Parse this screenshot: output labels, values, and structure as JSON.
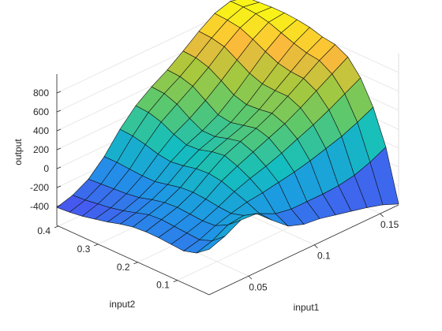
{
  "chart_data": {
    "type": "surface3d",
    "title": "",
    "xlabel": "input1",
    "ylabel": "input2",
    "zlabel": "output",
    "x_ticks": [
      "0.05",
      "0.1",
      "0.15"
    ],
    "y_ticks": [
      "0.1",
      "0.2",
      "0.3",
      "0.4"
    ],
    "z_ticks": [
      "-400",
      "-200",
      "0",
      "200",
      "400",
      "600",
      "800"
    ],
    "grid": true,
    "colormap": "parula",
    "x_grid": [
      0.02,
      0.032,
      0.044,
      0.056,
      0.068,
      0.08,
      0.092,
      0.104,
      0.116,
      0.128,
      0.14,
      0.152,
      0.164
    ],
    "y_grid": [
      0.02,
      0.052,
      0.084,
      0.116,
      0.148,
      0.18,
      0.212,
      0.244,
      0.276,
      0.308,
      0.34,
      0.372,
      0.404
    ],
    "z": [
      [
        -120,
        -60,
        30,
        20,
        -130,
        -270,
        -330,
        -350,
        -390,
        -430,
        -470,
        -520,
        -590
      ],
      [
        -220,
        -170,
        -80,
        -60,
        -120,
        -200,
        -230,
        -230,
        -230,
        -220,
        -190,
        -130,
        -50
      ],
      [
        -260,
        -220,
        -150,
        -100,
        -60,
        -40,
        -10,
        20,
        60,
        110,
        160,
        230,
        310
      ],
      [
        -250,
        -210,
        -160,
        -90,
        -10,
        50,
        100,
        160,
        230,
        300,
        380,
        470,
        560
      ],
      [
        -240,
        -200,
        -150,
        -70,
        40,
        120,
        190,
        260,
        330,
        420,
        520,
        620,
        720
      ],
      [
        -240,
        -190,
        -140,
        -60,
        60,
        170,
        240,
        300,
        380,
        480,
        590,
        700,
        790
      ],
      [
        -250,
        -200,
        -150,
        -70,
        50,
        150,
        210,
        270,
        360,
        480,
        600,
        720,
        810
      ],
      [
        -280,
        -240,
        -180,
        -100,
        20,
        110,
        170,
        240,
        350,
        490,
        630,
        760,
        850
      ],
      [
        -320,
        -280,
        -220,
        -130,
        0,
        100,
        170,
        260,
        390,
        540,
        690,
        810,
        870
      ],
      [
        -350,
        -310,
        -240,
        -130,
        20,
        150,
        240,
        350,
        480,
        620,
        760,
        860,
        880
      ],
      [
        -380,
        -330,
        -250,
        -120,
        60,
        220,
        330,
        440,
        560,
        700,
        820,
        890,
        880
      ],
      [
        -400,
        -350,
        -260,
        -110,
        90,
        260,
        380,
        480,
        600,
        730,
        840,
        900,
        870
      ],
      [
        -410,
        -360,
        -270,
        -110,
        100,
        270,
        390,
        490,
        610,
        740,
        850,
        900,
        860
      ]
    ]
  }
}
